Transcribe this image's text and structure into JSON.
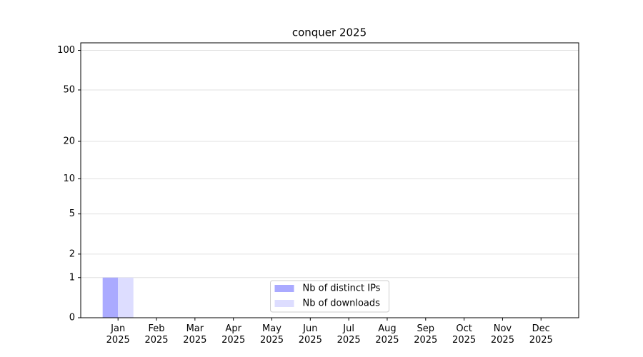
{
  "chart_data": {
    "type": "bar",
    "title": "conquer 2025",
    "categories": [
      "Jan\n2025",
      "Feb\n2025",
      "Mar\n2025",
      "Apr\n2025",
      "May\n2025",
      "Jun\n2025",
      "Jul\n2025",
      "Aug\n2025",
      "Sep\n2025",
      "Oct\n2025",
      "Nov\n2025",
      "Dec\n2025"
    ],
    "series": [
      {
        "name": "Nb of distinct IPs",
        "color": "#aaaaff",
        "values": [
          1,
          0,
          0,
          0,
          0,
          0,
          0,
          0,
          0,
          0,
          0,
          0
        ]
      },
      {
        "name": "Nb of downloads",
        "color": "#ddddff",
        "values": [
          1,
          0,
          0,
          0,
          0,
          0,
          0,
          0,
          0,
          0,
          0,
          0
        ]
      }
    ],
    "yscale": "symlog",
    "ylim": [
      0,
      114
    ],
    "yticks": [
      0,
      1,
      2,
      5,
      10,
      20,
      50,
      100
    ],
    "grid": true,
    "legend": "lower center"
  }
}
